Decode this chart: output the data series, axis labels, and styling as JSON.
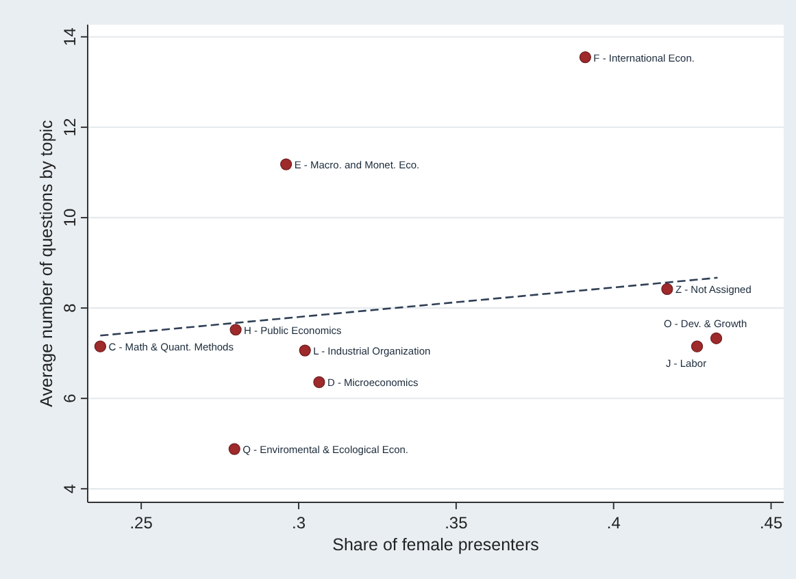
{
  "chart_data": {
    "type": "scatter",
    "xlabel": "Share of female presenters",
    "ylabel": "Average number of questions by topic",
    "xlim": [
      0.233,
      0.454
    ],
    "ylim": [
      3.7,
      14.27
    ],
    "xticks": [
      {
        "value": 0.25,
        "label": ".25"
      },
      {
        "value": 0.3,
        "label": ".3"
      },
      {
        "value": 0.35,
        "label": ".35"
      },
      {
        "value": 0.4,
        "label": ".4"
      },
      {
        "value": 0.45,
        "label": ".45"
      }
    ],
    "yticks": [
      4,
      6,
      8,
      10,
      12,
      14
    ],
    "grid": "y",
    "marker": "circle",
    "series": [
      {
        "color": "#9e2a2b",
        "x": [
          0.391,
          0.296,
          0.417,
          0.4326,
          0.4265,
          0.237,
          0.28,
          0.302,
          0.3065,
          0.2796
        ],
        "values": [
          13.55,
          11.18,
          8.42,
          7.33,
          7.15,
          7.15,
          7.52,
          7.06,
          6.36,
          4.88
        ]
      },
      {
        "type": "line",
        "color": "#2f3f55",
        "line_style": "dashed",
        "marker": "none",
        "x": [
          0.237,
          0.433
        ],
        "values": [
          7.39,
          8.67
        ]
      }
    ],
    "annotations": [
      {
        "text": "F - International Econ.",
        "x": 0.391,
        "y": 13.55
      },
      {
        "text": "E - Macro. and Monet. Eco.",
        "x": 0.296,
        "y": 11.18
      },
      {
        "text": "Z - Not Assigned",
        "x": 0.417,
        "y": 8.42
      },
      {
        "text": "O - Dev. & Growth",
        "x": 0.4326,
        "y": 7.33
      },
      {
        "text": "J - Labor",
        "x": 0.4265,
        "y": 7.15
      },
      {
        "text": "C - Math & Quant. Methods",
        "x": 0.237,
        "y": 7.15
      },
      {
        "text": "H - Public Economics",
        "x": 0.28,
        "y": 7.52
      },
      {
        "text": "L - Industrial Organization",
        "x": 0.302,
        "y": 7.06
      },
      {
        "text": "D - Microeconomics",
        "x": 0.3065,
        "y": 6.36
      },
      {
        "text": "Q - Enviromental & Ecological Econ.",
        "x": 0.2796,
        "y": 4.88
      }
    ]
  }
}
